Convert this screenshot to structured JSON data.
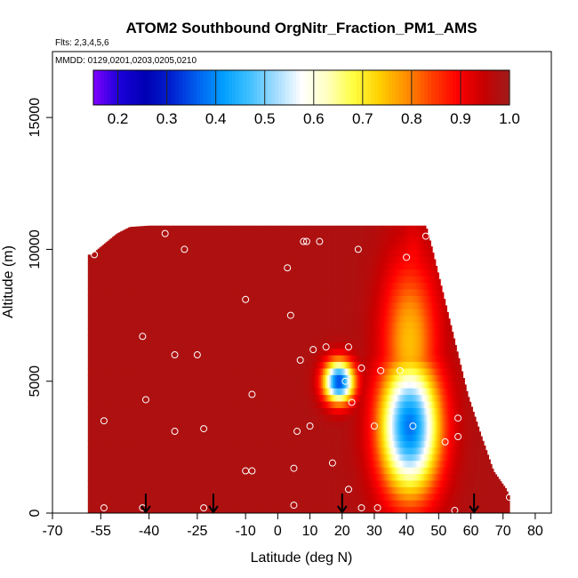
{
  "chart_data": {
    "type": "heatmap",
    "title": "ATOM2 Southbound OrgNitr_Fraction_PM1_AMS",
    "flights_note": "Flts: 2,3,4,5,6",
    "dates_note": "MMDD: 0129,0201,0203,0205,0210",
    "xlabel": "Latitude (deg N)",
    "ylabel": "Altitude (m)",
    "xlim": [
      -70,
      85
    ],
    "ylim": [
      0,
      17500
    ],
    "x_ticks": [
      -70,
      -55,
      -40,
      -25,
      -10,
      0,
      10,
      20,
      30,
      40,
      50,
      60,
      70,
      80
    ],
    "x_tick_labels": [
      "-70",
      "-55",
      "-40",
      "-25",
      "-10",
      "0",
      "10",
      "20",
      "30",
      "40",
      "50",
      "60",
      "70",
      "80"
    ],
    "y_ticks": [
      0,
      5000,
      10000,
      15000
    ],
    "y_tick_labels": [
      "0",
      "5000",
      "10000",
      "15000"
    ],
    "colorbar": {
      "range": [
        0.15,
        1.0
      ],
      "ticks": [
        0.2,
        0.3,
        0.4,
        0.5,
        0.6,
        0.7,
        0.8,
        0.9,
        1.0
      ],
      "tick_labels": [
        "0.2",
        "0.3",
        "0.4",
        "0.5",
        "0.6",
        "0.7",
        "0.8",
        "0.9",
        "1.0"
      ],
      "colors": [
        "#8000ff",
        "#1a00d9",
        "#0000b3",
        "#0020d0",
        "#0060f0",
        "#00a0ff",
        "#40c0ff",
        "#a0dcff",
        "#ffffff",
        "#ffffc0",
        "#ffff40",
        "#ffd000",
        "#ff9000",
        "#ff4000",
        "#ff0000",
        "#c80000",
        "#9e1b1b"
      ]
    },
    "field": {
      "background_value": 0.98,
      "domain": [
        {
          "lat": -58,
          "alt_top": 9800
        },
        {
          "lat": -56,
          "alt_top": 10000
        },
        {
          "lat": -53,
          "alt_top": 10300
        },
        {
          "lat": -50,
          "alt_top": 10600
        },
        {
          "lat": -46,
          "alt_top": 10850
        },
        {
          "lat": -40,
          "alt_top": 10900
        },
        {
          "lat": 46,
          "alt_top": 10900
        },
        {
          "lat": 48,
          "alt_top": 10000
        },
        {
          "lat": 50,
          "alt_top": 9000
        },
        {
          "lat": 53,
          "alt_top": 7500
        },
        {
          "lat": 56,
          "alt_top": 6000
        },
        {
          "lat": 59,
          "alt_top": 4500
        },
        {
          "lat": 63,
          "alt_top": 3000
        },
        {
          "lat": 67,
          "alt_top": 1600
        },
        {
          "lat": 71,
          "alt_top": 900
        },
        {
          "lat": 72,
          "alt_top": 600
        }
      ],
      "domain_left_lat": -59,
      "features": [
        {
          "name": "mid-altitude low",
          "lat": 19,
          "alt": 5000,
          "lat_sigma": 3.3,
          "alt_sigma": 550,
          "min_value": 0.34
        },
        {
          "name": "northern plume low",
          "lat": 41,
          "alt": 3300,
          "lat_sigma": 6.5,
          "alt_sigma": 1800,
          "min_value": 0.38
        },
        {
          "name": "northern plume upper",
          "lat": 41,
          "alt": 6500,
          "lat_sigma": 6.0,
          "alt_sigma": 2200,
          "min_value": 0.75
        },
        {
          "name": "northern plume top",
          "lat": 42,
          "alt": 9000,
          "lat_sigma": 3.5,
          "alt_sigma": 1500,
          "min_value": 0.88
        }
      ]
    },
    "sample_points": [
      {
        "lat": -57,
        "alt": 9800
      },
      {
        "lat": -48,
        "alt": 10900
      },
      {
        "lat": -35,
        "alt": 10600
      },
      {
        "lat": -29,
        "alt": 10000
      },
      {
        "lat": 3,
        "alt": 9300
      },
      {
        "lat": 8,
        "alt": 10300
      },
      {
        "lat": 9,
        "alt": 10300
      },
      {
        "lat": 13,
        "alt": 10300
      },
      {
        "lat": 25,
        "alt": 10000
      },
      {
        "lat": 40,
        "alt": 9700
      },
      {
        "lat": 46,
        "alt": 10500
      },
      {
        "lat": -10,
        "alt": 8100
      },
      {
        "lat": 4,
        "alt": 7500
      },
      {
        "lat": -42,
        "alt": 6700
      },
      {
        "lat": -32,
        "alt": 6000
      },
      {
        "lat": -25,
        "alt": 6000
      },
      {
        "lat": 7,
        "alt": 5800
      },
      {
        "lat": 11,
        "alt": 6200
      },
      {
        "lat": 15,
        "alt": 6300
      },
      {
        "lat": 22,
        "alt": 6300
      },
      {
        "lat": 26,
        "alt": 5500
      },
      {
        "lat": 32,
        "alt": 5400
      },
      {
        "lat": 38,
        "alt": 5400
      },
      {
        "lat": 21,
        "alt": 5000
      },
      {
        "lat": -8,
        "alt": 4500
      },
      {
        "lat": -41,
        "alt": 4300
      },
      {
        "lat": 23,
        "alt": 4200
      },
      {
        "lat": 61,
        "alt": 4300
      },
      {
        "lat": 56,
        "alt": 3600
      },
      {
        "lat": -68,
        "alt": 3400
      },
      {
        "lat": -54,
        "alt": 3500
      },
      {
        "lat": 10,
        "alt": 3300
      },
      {
        "lat": 30,
        "alt": 3300
      },
      {
        "lat": 42,
        "alt": 3300
      },
      {
        "lat": -32,
        "alt": 3100
      },
      {
        "lat": -23,
        "alt": 3200
      },
      {
        "lat": 6,
        "alt": 3100
      },
      {
        "lat": 56,
        "alt": 2900
      },
      {
        "lat": 52,
        "alt": 2700
      },
      {
        "lat": 17,
        "alt": 1900
      },
      {
        "lat": -10,
        "alt": 1600
      },
      {
        "lat": -8,
        "alt": 1600
      },
      {
        "lat": 5,
        "alt": 1700
      },
      {
        "lat": 22,
        "alt": 900
      },
      {
        "lat": -67,
        "alt": 200
      },
      {
        "lat": -54,
        "alt": 200
      },
      {
        "lat": -42,
        "alt": 200
      },
      {
        "lat": -23,
        "alt": 200
      },
      {
        "lat": 5,
        "alt": 300
      },
      {
        "lat": 26,
        "alt": 200
      },
      {
        "lat": 31,
        "alt": 200
      },
      {
        "lat": 55,
        "alt": 100
      },
      {
        "lat": 72,
        "alt": 600
      }
    ],
    "flight_markers_lat": [
      -41,
      -20,
      20,
      61
    ]
  }
}
